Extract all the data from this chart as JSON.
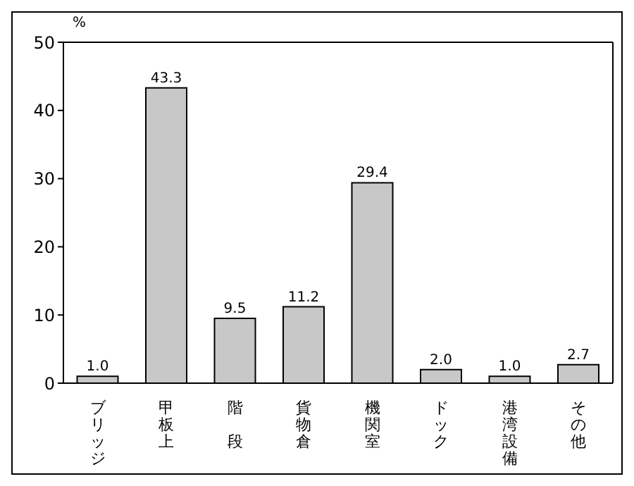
{
  "chart_data": {
    "type": "bar",
    "ylabel": "%",
    "categories": [
      "ブリッジ",
      "甲板上",
      "階段",
      "貨物倉",
      "機関室",
      "ドック",
      "港湾設備",
      "その他"
    ],
    "values": [
      1.0,
      43.3,
      9.5,
      11.2,
      29.4,
      2.0,
      1.0,
      2.7
    ],
    "value_labels": [
      "1.0",
      "43.3",
      "9.5",
      "11.2",
      "29.4",
      "2.0",
      "1.0",
      "2.7"
    ],
    "color": "#c8c8c8",
    "ylim": [
      0,
      50
    ],
    "yticks": [
      0,
      10,
      20,
      30,
      40,
      50
    ],
    "grid": false
  }
}
